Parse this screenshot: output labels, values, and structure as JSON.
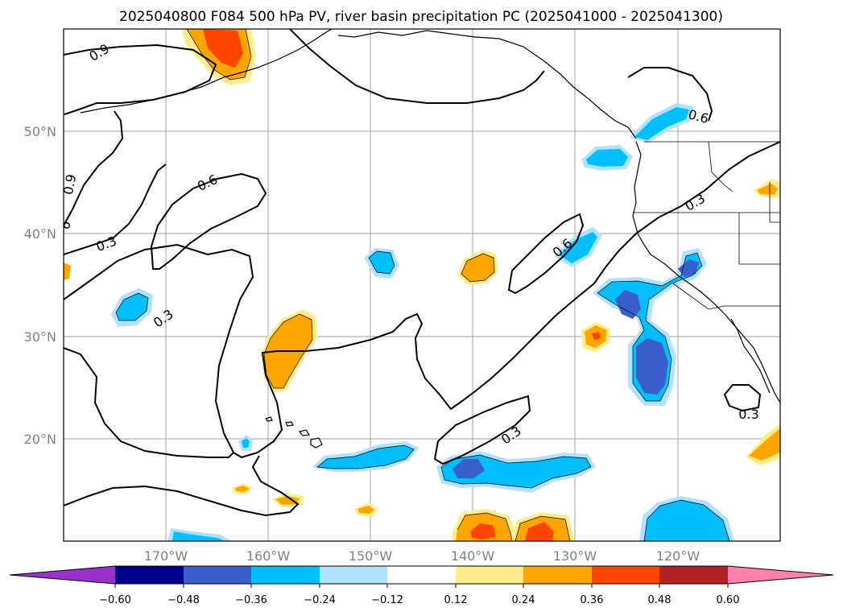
{
  "title": "2025040800 F084 500 hPa PV, river basin precipitation PC (2025041000 - 2025041300)",
  "map": {
    "lat_labels": [
      "50°N",
      "40°N",
      "30°N",
      "20°N"
    ],
    "lon_labels": [
      "170°W",
      "160°W",
      "150°W",
      "140°W",
      "130°W",
      "120°W"
    ],
    "contour_labels": [
      "0.9",
      "0.9",
      "6",
      "0.3",
      "0.6",
      "0.3",
      "0.6",
      "0.6",
      "0.3",
      "0.3",
      "0.3"
    ]
  },
  "colorbar": {
    "ticks": [
      "−0.60",
      "−0.48",
      "−0.36",
      "−0.24",
      "−0.12",
      "0.12",
      "0.24",
      "0.36",
      "0.48",
      "0.60"
    ],
    "colors": [
      "#9932cc",
      "#00008b",
      "#3a5fcd",
      "#00bfff",
      "#b0e2ff",
      "#ffffff",
      "#ffec8b",
      "#ffa500",
      "#ff4500",
      "#b22222",
      "#ff82ab"
    ]
  },
  "palette": {
    "pos1": "#ffec8b",
    "pos2": "#ffa500",
    "pos3": "#ff4500",
    "neg1": "#b0e2ff",
    "neg2": "#00bfff",
    "neg3": "#3a5fcd"
  }
}
